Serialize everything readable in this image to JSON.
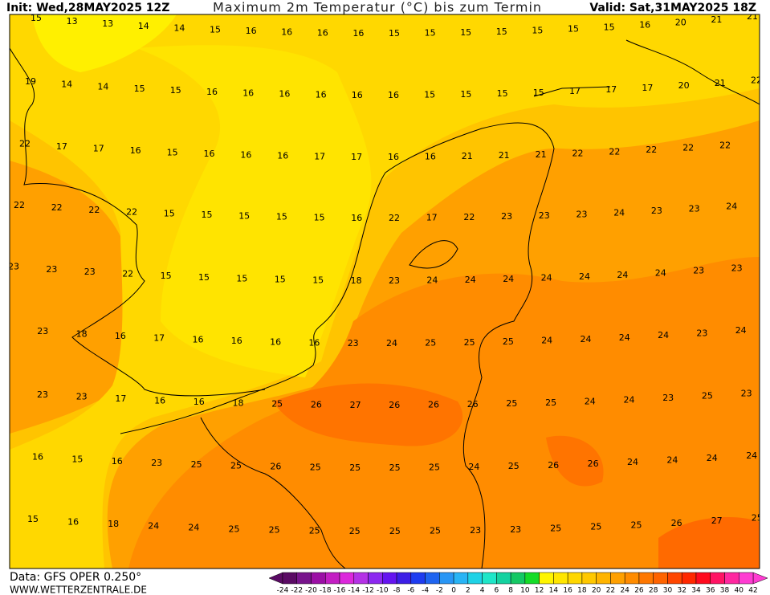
{
  "header": {
    "init": "Init: Wed,28MAY2025 12Z",
    "title": "Maximum 2m Temperatur (°C) bis zum Termin",
    "valid": "Valid: Sat,31MAY2025 18Z"
  },
  "map": {
    "rows": [
      [
        15,
        13,
        13,
        14,
        14,
        15,
        16,
        16,
        16,
        16,
        15,
        15,
        15,
        15,
        15,
        15,
        15,
        16,
        20,
        21,
        21
      ],
      [
        19,
        14,
        14,
        15,
        15,
        16,
        16,
        16,
        16,
        16,
        16,
        15,
        15,
        15,
        15,
        17,
        17,
        17,
        20,
        21,
        22
      ],
      [
        22,
        17,
        17,
        16,
        15,
        16,
        16,
        16,
        17,
        17,
        16,
        16,
        21,
        21,
        21,
        22,
        22,
        22,
        22,
        22
      ],
      [
        22,
        22,
        22,
        22,
        15,
        15,
        15,
        15,
        15,
        16,
        22,
        17,
        22,
        23,
        23,
        23,
        24,
        23,
        23,
        24
      ],
      [
        23,
        23,
        23,
        22,
        15,
        15,
        15,
        15,
        15,
        18,
        23,
        24,
        24,
        24,
        24,
        24,
        24,
        24,
        23,
        23
      ],
      [
        23,
        23,
        18,
        16,
        17,
        16,
        16,
        16,
        16,
        23,
        24,
        25,
        25,
        25,
        24,
        24,
        24,
        24,
        23,
        24
      ],
      [
        23,
        23,
        17,
        16,
        16,
        18,
        25,
        26,
        27,
        26,
        26,
        26,
        25,
        25,
        24,
        24,
        23,
        25,
        23
      ],
      [
        16,
        15,
        16,
        23,
        25,
        25,
        26,
        25,
        25,
        25,
        25,
        24,
        25,
        26,
        26,
        24,
        24,
        24,
        24
      ],
      [
        15,
        16,
        18,
        24,
        24,
        25,
        25,
        25,
        25,
        25,
        25,
        23,
        23,
        25,
        25,
        25,
        26,
        27,
        25
      ]
    ]
  },
  "colorbar": {
    "labels": [
      -24,
      -22,
      -20,
      -18,
      -16,
      -14,
      -12,
      -10,
      -8,
      -6,
      -4,
      -2,
      0,
      2,
      4,
      6,
      8,
      10,
      12,
      14,
      16,
      18,
      20,
      22,
      24,
      26,
      28,
      30,
      32,
      34,
      36,
      38,
      40,
      42
    ],
    "colors": [
      "#5a0a64",
      "#78148c",
      "#9b0fa5",
      "#c31ec3",
      "#dc28dc",
      "#b432e6",
      "#8c28f0",
      "#6414f0",
      "#3c1ee6",
      "#1e3cf0",
      "#1e64f0",
      "#2896f5",
      "#28b4f5",
      "#1ed2e6",
      "#1ee6c8",
      "#14d2a0",
      "#14c864",
      "#14dc28",
      "#fff500",
      "#ffe600",
      "#ffd700",
      "#ffc800",
      "#ffb400",
      "#ffa000",
      "#ff8c00",
      "#ff7800",
      "#ff6400",
      "#ff4600",
      "#ff2800",
      "#ff0a1e",
      "#ff1464",
      "#ff28a0",
      "#ff3cd2"
    ]
  },
  "footer": {
    "data": "Data: GFS OPER 0.250°",
    "site": "WWW.WETTERZENTRALE.DE"
  }
}
